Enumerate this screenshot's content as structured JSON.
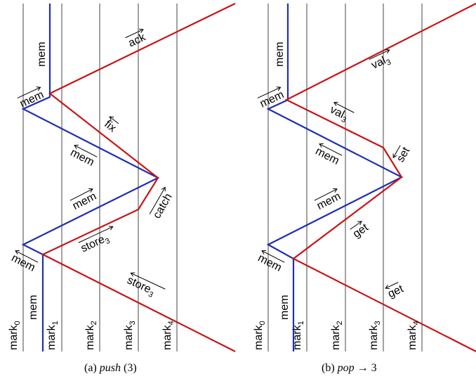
{
  "panels": [
    {
      "caption_prefix": "(a)",
      "caption_op": "push",
      "caption_rest": " (3)",
      "columns": [
        {
          "base": "mark",
          "sub": "0"
        },
        {
          "base": "mark",
          "sub": "1"
        },
        {
          "base": "mark",
          "sub": "2"
        },
        {
          "base": "mark",
          "sub": "3"
        },
        {
          "base": "mark",
          "sub": "4"
        }
      ],
      "mem_label": "mem",
      "edges": [
        {
          "base": "mem",
          "sub": ""
        },
        {
          "base": "ack",
          "sub": ""
        },
        {
          "base": "mem",
          "sub": ""
        },
        {
          "base": "fix",
          "sub": ""
        },
        {
          "base": "mem",
          "sub": ""
        },
        {
          "base": "mem",
          "sub": ""
        },
        {
          "base": "catch",
          "sub": ""
        },
        {
          "base": "store",
          "sub": "3"
        },
        {
          "base": "mem",
          "sub": ""
        },
        {
          "base": "store",
          "sub": "3"
        }
      ]
    },
    {
      "caption_prefix": "(b)",
      "caption_op": "pop",
      "caption_rest": " → 3",
      "columns": [
        {
          "base": "mark",
          "sub": "0"
        },
        {
          "base": "mark",
          "sub": "1"
        },
        {
          "base": "mark",
          "sub": "2"
        },
        {
          "base": "mark",
          "sub": "3"
        },
        {
          "base": "mark",
          "sub": "4"
        }
      ],
      "mem_label": "mem",
      "edges": [
        {
          "base": "mem",
          "sub": ""
        },
        {
          "base": "val",
          "sub": "3"
        },
        {
          "base": "mem",
          "sub": ""
        },
        {
          "base": "val",
          "sub": "3"
        },
        {
          "base": "mem",
          "sub": ""
        },
        {
          "base": "set",
          "sub": ""
        },
        {
          "base": "mem",
          "sub": ""
        },
        {
          "base": "get",
          "sub": ""
        },
        {
          "base": "mem",
          "sub": ""
        },
        {
          "base": "get",
          "sub": ""
        }
      ]
    }
  ],
  "colors": {
    "grid": "#8a8a8a",
    "mem_path": "#1f2fb0",
    "thread_path": "#c81414"
  }
}
